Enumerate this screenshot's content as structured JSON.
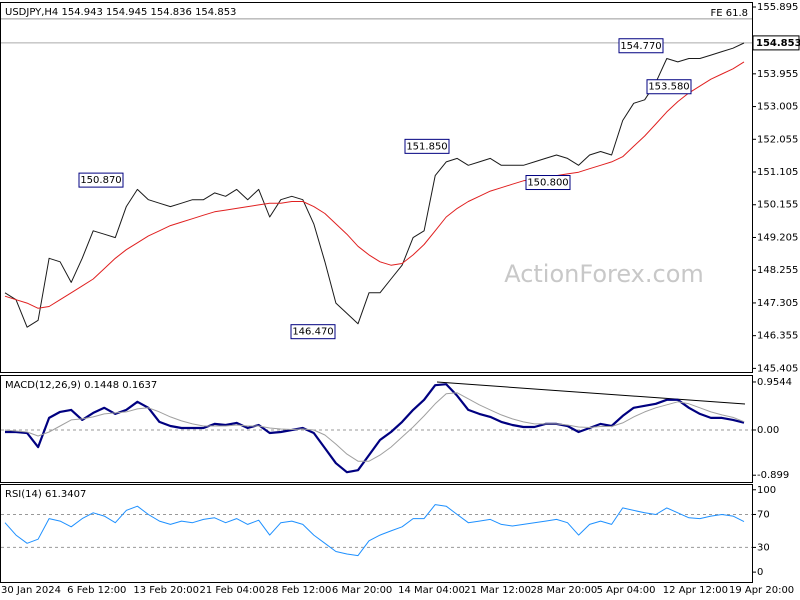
{
  "chart_data": [
    {
      "type": "line",
      "title": "USDJPY,H4  154.943 154.945 154.836 154.853",
      "categories": [
        "30 Jan 2024",
        null,
        null,
        null,
        null,
        null,
        "6 Feb 12:00",
        null,
        null,
        null,
        null,
        null,
        "13 Feb 20:00",
        null,
        null,
        null,
        null,
        null,
        "21 Feb 04:00",
        null,
        null,
        null,
        null,
        null,
        "28 Feb 12:00",
        null,
        null,
        null,
        null,
        null,
        "6 Mar 20:00",
        null,
        null,
        null,
        null,
        null,
        "14 Mar 04:00",
        null,
        null,
        null,
        null,
        null,
        "21 Mar 12:00",
        null,
        null,
        null,
        null,
        null,
        "28 Mar 20:00",
        null,
        null,
        null,
        null,
        null,
        "5 Apr 04:00",
        null,
        null,
        null,
        null,
        null,
        "12 Apr 12:00",
        null,
        null,
        null,
        null,
        null,
        "19 Apr 20:00",
        null
      ],
      "series": [
        {
          "color": "#1a1a1a",
          "width": 1,
          "values": [
            147.6,
            147.4,
            146.6,
            146.8,
            148.6,
            148.5,
            147.9,
            148.6,
            149.4,
            149.3,
            149.2,
            150.1,
            150.6,
            150.3,
            150.2,
            150.1,
            150.2,
            150.3,
            150.3,
            150.5,
            150.4,
            150.6,
            150.3,
            150.6,
            149.8,
            150.3,
            150.4,
            150.3,
            149.6,
            148.5,
            147.3,
            147.0,
            146.7,
            147.6,
            147.6,
            148.0,
            148.4,
            149.2,
            149.4,
            151.0,
            151.4,
            151.5,
            151.3,
            151.4,
            151.5,
            151.3,
            151.3,
            151.3,
            151.4,
            151.5,
            151.6,
            151.5,
            151.3,
            151.6,
            151.7,
            151.6,
            152.6,
            153.1,
            153.2,
            153.7,
            154.4,
            154.3,
            154.4,
            154.4,
            154.5,
            154.6,
            154.7,
            154.85
          ]
        },
        {
          "color": "#e02020",
          "width": 1,
          "values": [
            147.5,
            147.4,
            147.3,
            147.15,
            147.2,
            147.4,
            147.6,
            147.8,
            148.0,
            148.3,
            148.6,
            148.85,
            149.05,
            149.25,
            149.4,
            149.55,
            149.65,
            149.75,
            149.85,
            149.95,
            150.0,
            150.05,
            150.1,
            150.15,
            150.2,
            150.2,
            150.25,
            150.25,
            150.1,
            149.9,
            149.6,
            149.3,
            148.95,
            148.7,
            148.5,
            148.4,
            148.45,
            148.7,
            149.0,
            149.4,
            149.8,
            150.05,
            150.25,
            150.4,
            150.55,
            150.65,
            150.75,
            150.85,
            150.9,
            150.95,
            151.0,
            151.05,
            151.1,
            151.2,
            151.3,
            151.4,
            151.55,
            151.85,
            152.15,
            152.5,
            152.85,
            153.15,
            153.4,
            153.6,
            153.8,
            153.95,
            154.1,
            154.3
          ]
        }
      ],
      "ylim": [
        145.3,
        156.04
      ],
      "yticks": [
        155.895,
        153.955,
        153.005,
        152.055,
        151.105,
        150.155,
        149.205,
        148.255,
        147.305,
        146.355,
        145.405
      ],
      "last_price": {
        "value": 154.853,
        "label": "154.853"
      },
      "fe_level": {
        "value": 155.55,
        "label": "FE 61.8"
      },
      "annotations": [
        {
          "value": 150.87,
          "label": "150.870"
        },
        {
          "value": 146.47,
          "label": "146.470"
        },
        {
          "value": 151.85,
          "label": "151.850"
        },
        {
          "value": 150.8,
          "label": "150.800"
        },
        {
          "value": 154.77,
          "label": "154.770"
        },
        {
          "value": 153.58,
          "label": "153.580"
        }
      ],
      "watermark": "ActionForex.com"
    },
    {
      "type": "line",
      "title": "MACD(12,26,9) 0.1448 0.1637",
      "series": [
        {
          "color": "#000080",
          "width": 2.2,
          "values": [
            -0.04,
            -0.04,
            -0.06,
            -0.34,
            0.24,
            0.36,
            0.4,
            0.2,
            0.34,
            0.44,
            0.32,
            0.4,
            0.56,
            0.44,
            0.16,
            0.08,
            0.04,
            0.04,
            0.04,
            0.12,
            0.1,
            0.14,
            0.04,
            0.1,
            -0.06,
            -0.04,
            0,
            0.04,
            -0.06,
            -0.36,
            -0.66,
            -0.84,
            -0.8,
            -0.5,
            -0.2,
            -0.04,
            0.16,
            0.4,
            0.6,
            0.89,
            0.91,
            0.68,
            0.4,
            0.32,
            0.26,
            0.16,
            0.1,
            0.06,
            0.06,
            0.12,
            0.12,
            0.08,
            -0.04,
            0.04,
            0.12,
            0.08,
            0.28,
            0.44,
            0.48,
            0.52,
            0.6,
            0.6,
            0.44,
            0.32,
            0.24,
            0.24,
            0.2,
            0.1448
          ]
        },
        {
          "color": "#a0a0a0",
          "width": 1,
          "values": [
            0,
            -0.02,
            -0.04,
            -0.12,
            -0.04,
            0.08,
            0.2,
            0.22,
            0.26,
            0.32,
            0.34,
            0.36,
            0.42,
            0.44,
            0.36,
            0.26,
            0.18,
            0.12,
            0.08,
            0.08,
            0.08,
            0.1,
            0.08,
            0.08,
            0.04,
            0.02,
            0.01,
            0.02,
            0,
            -0.1,
            -0.28,
            -0.48,
            -0.62,
            -0.62,
            -0.5,
            -0.34,
            -0.14,
            0.06,
            0.28,
            0.52,
            0.72,
            0.74,
            0.62,
            0.5,
            0.4,
            0.3,
            0.22,
            0.16,
            0.12,
            0.12,
            0.12,
            0.1,
            0.06,
            0.05,
            0.07,
            0.07,
            0.14,
            0.26,
            0.36,
            0.44,
            0.5,
            0.56,
            0.52,
            0.44,
            0.36,
            0.3,
            0.25,
            0.1637
          ]
        }
      ],
      "ylim": [
        -1.034,
        1.093
      ],
      "yticks": [
        0.9544,
        {
          "value": 0,
          "label": "0.00"
        },
        -0.899
      ],
      "levels": [
        0
      ]
    },
    {
      "type": "line",
      "title": "RSI(14) 61.3407",
      "series": [
        {
          "color": "#1e90ff",
          "width": 1,
          "values": [
            60,
            45,
            35,
            40,
            65,
            62,
            55,
            65,
            72,
            68,
            60,
            75,
            80,
            70,
            62,
            58,
            62,
            60,
            64,
            66,
            60,
            65,
            58,
            63,
            45,
            60,
            62,
            58,
            45,
            35,
            25,
            22,
            20,
            38,
            45,
            50,
            55,
            65,
            65,
            82,
            80,
            70,
            60,
            62,
            64,
            58,
            56,
            58,
            60,
            62,
            64,
            60,
            45,
            58,
            62,
            58,
            78,
            75,
            72,
            70,
            78,
            72,
            66,
            65,
            68,
            70,
            68,
            61.3407
          ]
        }
      ],
      "ylim": [
        -12,
        107
      ],
      "yticks": [
        100,
        70,
        30,
        0
      ],
      "levels": [
        30,
        70
      ]
    }
  ]
}
